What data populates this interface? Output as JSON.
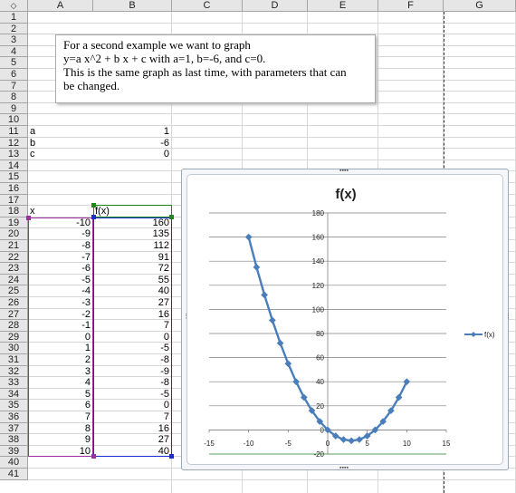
{
  "columns": [
    "A",
    "B",
    "C",
    "D",
    "E",
    "F",
    "G"
  ],
  "rows": [
    "1",
    "2",
    "3",
    "4",
    "5",
    "6",
    "7",
    "8",
    "9",
    "10",
    "11",
    "12",
    "13",
    "14",
    "15",
    "16",
    "17",
    "18",
    "19",
    "20",
    "21",
    "22",
    "23",
    "24",
    "25",
    "26",
    "27",
    "28",
    "29",
    "30",
    "31",
    "32",
    "33",
    "34",
    "35",
    "36",
    "37",
    "38",
    "39",
    "40",
    "41"
  ],
  "corner_icon": "select-all-diamond",
  "note": {
    "lines": [
      "For a second example we want to graph",
      "y=a x^2 + b x + c with a=1, b=-6, and c=0.",
      "This is the same graph as last time, with parameters that can",
      "be changed."
    ]
  },
  "params": [
    {
      "name": "a",
      "value": "1"
    },
    {
      "name": "b",
      "value": "-6"
    },
    {
      "name": "c",
      "value": "0"
    }
  ],
  "table": {
    "x_header": "x",
    "fx_header": "f(x)",
    "x_values": [
      "-10",
      "-9",
      "-8",
      "-7",
      "-6",
      "-5",
      "-4",
      "-3",
      "-2",
      "-1",
      "0",
      "1",
      "2",
      "3",
      "4",
      "5",
      "6",
      "7",
      "8",
      "9",
      "10"
    ],
    "fx_values": [
      "160",
      "135",
      "112",
      "91",
      "72",
      "55",
      "40",
      "27",
      "16",
      "7",
      "0",
      "-5",
      "-8",
      "-9",
      "-8",
      "-5",
      "0",
      "7",
      "16",
      "27",
      "40"
    ]
  },
  "colors": {
    "series": "#4a7ebb",
    "selection_x": "#9b30a0",
    "selection_fx": "#1a2fd0",
    "selection_header": "#1b8a1b"
  },
  "chart_data": {
    "type": "scatter",
    "title": "f(x)",
    "xlabel": "",
    "ylabel": "",
    "xlim": [
      -15,
      15
    ],
    "ylim": [
      -20,
      180
    ],
    "xticks": [
      "-15",
      "-10",
      "-5",
      "0",
      "5",
      "10",
      "15"
    ],
    "yticks": [
      "-20",
      "0",
      "20",
      "40",
      "60",
      "80",
      "100",
      "120",
      "140",
      "160",
      "180"
    ],
    "grid": true,
    "legend": "right",
    "series": [
      {
        "name": "f(x)",
        "x": [
          -10,
          -9,
          -8,
          -7,
          -6,
          -5,
          -4,
          -3,
          -2,
          -1,
          0,
          1,
          2,
          3,
          4,
          5,
          6,
          7,
          8,
          9,
          10
        ],
        "y": [
          160,
          135,
          112,
          91,
          72,
          55,
          40,
          27,
          16,
          7,
          0,
          -5,
          -8,
          -9,
          -8,
          -5,
          0,
          7,
          16,
          27,
          40
        ]
      }
    ]
  }
}
